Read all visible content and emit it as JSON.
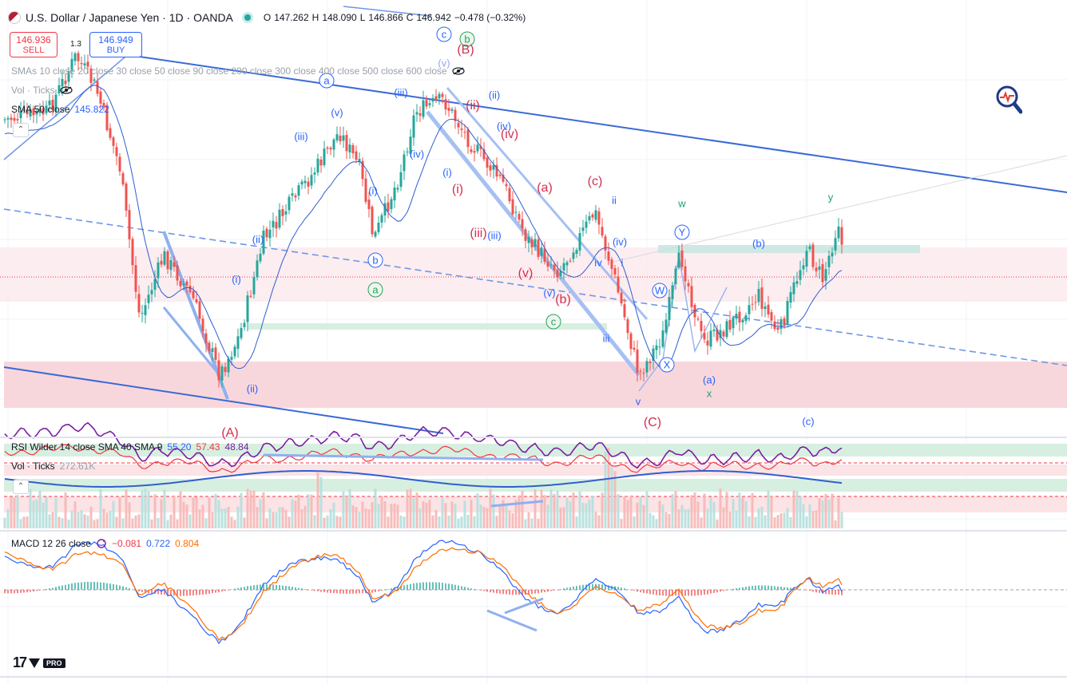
{
  "header": {
    "symbol_title": "U.S. Dollar / Japanese Yen · 1D · OANDA",
    "open_label": "O",
    "open": "147.262",
    "high_label": "H",
    "high": "148.090",
    "low_label": "L",
    "low": "146.866",
    "close_label": "C",
    "close": "146.942",
    "change": "−0.478 (−0.32%)"
  },
  "trade": {
    "sell_price": "146.936",
    "sell_label": "SELL",
    "buy_price": "146.949",
    "buy_label": "BUY",
    "spread": "1.3"
  },
  "indicators": {
    "smas": "SMAs 10 close 20 close 30 close 50 close 90 close 200 close 300 close 400 close 500 close 600 close",
    "vol_main": "Vol · Ticks",
    "sma50_label": "SMA 50 close",
    "sma50_value": "145.822",
    "rsi_label": "RSI Wilder 14 close SMA 40 SMA 9",
    "rsi_v1": "55.20",
    "rsi_v2": "57.43",
    "rsi_v3": "48.84",
    "vol_ticks_label": "Vol · Ticks",
    "vol_ticks_value": "272.61K",
    "macd_label": "MACD 12 26 close",
    "macd_v1": "−0.081",
    "macd_v2": "0.722",
    "macd_v3": "0.804"
  },
  "colors": {
    "up": "#26a69a",
    "down": "#ef5350",
    "trend": "#3a6ad6",
    "sma": "#2f5fd0",
    "rsi": "#7b1fa2",
    "rsi_ma": "#f23645",
    "macd": "#2962ff",
    "signal": "#ff6d00"
  },
  "wave_labels": [
    {
      "text": "a",
      "style": "circle-blue"
    },
    {
      "text": "c",
      "style": "circle-blue"
    },
    {
      "text": "b",
      "style": "circle-green"
    },
    {
      "text": "(B)",
      "style": "red"
    },
    {
      "text": "(v)",
      "style": "blue-light"
    },
    {
      "text": "(iii)",
      "style": "blue"
    },
    {
      "text": "(ii)",
      "style": "blue"
    },
    {
      "text": "(ii)",
      "style": "red"
    },
    {
      "text": "(v)",
      "style": "blue"
    },
    {
      "text": "(iii)",
      "style": "blue"
    },
    {
      "text": "(iv)",
      "style": "blue"
    },
    {
      "text": "(iv)",
      "style": "blue"
    },
    {
      "text": "(iv)",
      "style": "red"
    },
    {
      "text": "(i)",
      "style": "blue"
    },
    {
      "text": "(i)",
      "style": "blue"
    },
    {
      "text": "(i)",
      "style": "red"
    },
    {
      "text": "(a)",
      "style": "red"
    },
    {
      "text": "(c)",
      "style": "red"
    },
    {
      "text": "ii",
      "style": "blue"
    },
    {
      "text": "w",
      "style": "green"
    },
    {
      "text": "y",
      "style": "green"
    },
    {
      "text": "Y",
      "style": "circle-blue"
    },
    {
      "text": "(b)",
      "style": "blue"
    },
    {
      "text": "(iv)",
      "style": "blue"
    },
    {
      "text": "(ii)",
      "style": "blue"
    },
    {
      "text": "(iii)",
      "style": "red"
    },
    {
      "text": "(iii)",
      "style": "blue"
    },
    {
      "text": "iv",
      "style": "blue"
    },
    {
      "text": "i",
      "style": "blue"
    },
    {
      "text": "b",
      "style": "circle-blue"
    },
    {
      "text": "a",
      "style": "circle-green"
    },
    {
      "text": "(i)",
      "style": "blue"
    },
    {
      "text": "(v)",
      "style": "red"
    },
    {
      "text": "(v)",
      "style": "blue"
    },
    {
      "text": "(b)",
      "style": "red"
    },
    {
      "text": "c",
      "style": "circle-green"
    },
    {
      "text": "W",
      "style": "circle-blue"
    },
    {
      "text": "iii",
      "style": "blue"
    },
    {
      "text": "X",
      "style": "circle-blue"
    },
    {
      "text": "(a)",
      "style": "blue"
    },
    {
      "text": "x",
      "style": "green"
    },
    {
      "text": "v",
      "style": "blue"
    },
    {
      "text": "(ii)",
      "style": "blue"
    },
    {
      "text": "(C)",
      "style": "red"
    },
    {
      "text": "(c)",
      "style": "blue"
    },
    {
      "text": "(A)",
      "style": "red"
    }
  ],
  "chart_data": [
    {
      "type": "candlestick",
      "title": "U.S. Dollar / Japanese Yen · 1D · OANDA",
      "series": [
        {
          "name": "USDJPY",
          "last_close": 146.942,
          "last_open": 147.262,
          "last_high": 148.09,
          "last_low": 146.866
        },
        {
          "name": "SMA 50 close",
          "last_value": 145.822
        }
      ],
      "grid": true
    },
    {
      "type": "line",
      "title": "RSI Wilder 14 close SMA 40 SMA 9",
      "series": [
        {
          "name": "RSI",
          "last_value": 55.2
        },
        {
          "name": "SMA 40",
          "last_value": 57.43
        },
        {
          "name": "SMA 9",
          "last_value": 48.84
        }
      ]
    },
    {
      "type": "bar",
      "title": "Vol · Ticks",
      "series": [
        {
          "name": "Vol · Ticks",
          "last_value": "272.61K"
        }
      ]
    },
    {
      "type": "line",
      "title": "MACD 12 26 close",
      "series": [
        {
          "name": "Histogram",
          "last_value": -0.081
        },
        {
          "name": "MACD",
          "last_value": 0.722
        },
        {
          "name": "Signal",
          "last_value": 0.804
        }
      ]
    }
  ]
}
